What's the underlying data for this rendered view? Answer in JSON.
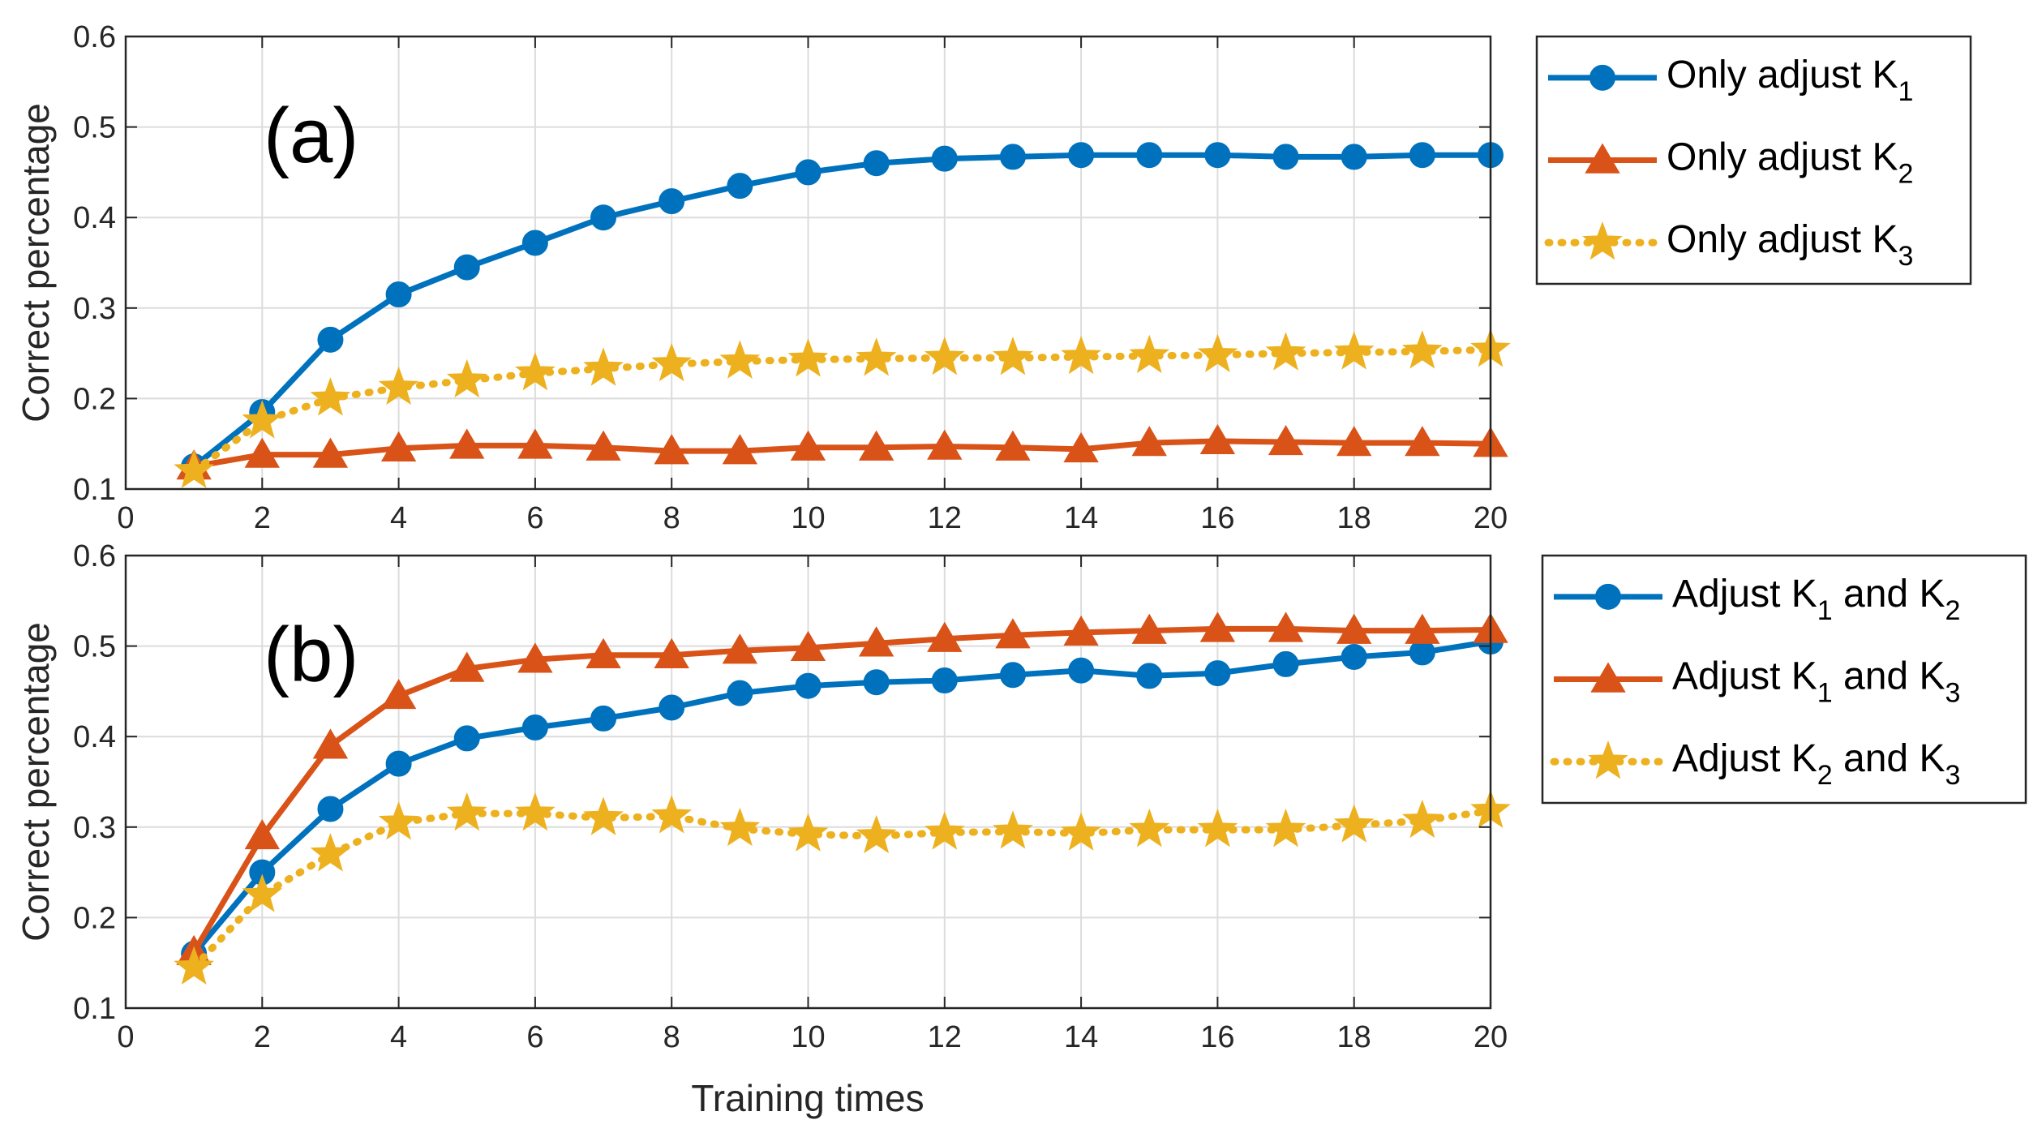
{
  "chart_data": [
    {
      "type": "line",
      "panel_label": "(a)",
      "xlabel": "",
      "ylabel": "Correct percentage",
      "xlim": [
        0,
        20
      ],
      "ylim": [
        0.1,
        0.6
      ],
      "xticks": [
        "0",
        "2",
        "4",
        "6",
        "8",
        "10",
        "12",
        "14",
        "16",
        "18",
        "20"
      ],
      "yticks": [
        "0.1",
        "0.2",
        "0.3",
        "0.4",
        "0.5",
        "0.6"
      ],
      "grid": true,
      "legend_position": "outside-right",
      "x": [
        1,
        2,
        3,
        4,
        5,
        6,
        7,
        8,
        9,
        10,
        11,
        12,
        13,
        14,
        15,
        16,
        17,
        18,
        19,
        20
      ],
      "series": [
        {
          "name": "Only adjust K1",
          "legend": {
            "prefix": "Only adjust K",
            "sub": "1",
            "suffix": ""
          },
          "color": "#0072BD",
          "marker": "circle",
          "dash": "solid",
          "values": [
            0.125,
            0.185,
            0.265,
            0.315,
            0.345,
            0.372,
            0.4,
            0.418,
            0.435,
            0.45,
            0.46,
            0.465,
            0.467,
            0.469,
            0.469,
            0.469,
            0.467,
            0.467,
            0.469,
            0.469
          ]
        },
        {
          "name": "Only adjust K2",
          "legend": {
            "prefix": "Only adjust K",
            "sub": "2",
            "suffix": ""
          },
          "color": "#D95319",
          "marker": "triangle",
          "dash": "solid",
          "values": [
            0.125,
            0.138,
            0.138,
            0.145,
            0.148,
            0.148,
            0.146,
            0.142,
            0.142,
            0.146,
            0.146,
            0.147,
            0.146,
            0.144,
            0.151,
            0.153,
            0.152,
            0.151,
            0.151,
            0.15
          ]
        },
        {
          "name": "Only adjust K3",
          "legend": {
            "prefix": "Only adjust K",
            "sub": "3",
            "suffix": ""
          },
          "color": "#EDB120",
          "marker": "star",
          "dash": "dotted",
          "values": [
            0.12,
            0.175,
            0.2,
            0.212,
            0.22,
            0.228,
            0.233,
            0.238,
            0.241,
            0.243,
            0.244,
            0.245,
            0.245,
            0.246,
            0.247,
            0.248,
            0.25,
            0.251,
            0.252,
            0.254
          ]
        }
      ]
    },
    {
      "type": "line",
      "panel_label": "(b)",
      "xlabel": "Training times",
      "ylabel": "Correct percentage",
      "xlim": [
        0,
        20
      ],
      "ylim": [
        0.1,
        0.6
      ],
      "xticks": [
        "0",
        "2",
        "4",
        "6",
        "8",
        "10",
        "12",
        "14",
        "16",
        "18",
        "20"
      ],
      "yticks": [
        "0.1",
        "0.2",
        "0.3",
        "0.4",
        "0.5",
        "0.6"
      ],
      "grid": true,
      "legend_position": "outside-right",
      "x": [
        1,
        2,
        3,
        4,
        5,
        6,
        7,
        8,
        9,
        10,
        11,
        12,
        13,
        14,
        15,
        16,
        17,
        18,
        19,
        20
      ],
      "series": [
        {
          "name": "Adjust K1 and K2",
          "legend": {
            "prefix": "Adjust K",
            "sub": "1",
            "mid": " and K",
            "sub2": "2"
          },
          "color": "#0072BD",
          "marker": "circle",
          "dash": "solid",
          "values": [
            0.16,
            0.25,
            0.32,
            0.37,
            0.398,
            0.41,
            0.42,
            0.432,
            0.448,
            0.456,
            0.46,
            0.462,
            0.468,
            0.473,
            0.467,
            0.47,
            0.48,
            0.488,
            0.493,
            0.505
          ]
        },
        {
          "name": "Adjust K1 and K3",
          "legend": {
            "prefix": "Adjust K",
            "sub": "1",
            "mid": " and K",
            "sub2": "3"
          },
          "color": "#D95319",
          "marker": "triangle",
          "dash": "solid",
          "values": [
            0.162,
            0.29,
            0.39,
            0.445,
            0.475,
            0.485,
            0.49,
            0.49,
            0.495,
            0.498,
            0.503,
            0.508,
            0.512,
            0.515,
            0.517,
            0.519,
            0.519,
            0.517,
            0.517,
            0.518
          ]
        },
        {
          "name": "Adjust K2 and K3",
          "legend": {
            "prefix": "Adjust K",
            "sub": "2",
            "mid": " and K",
            "sub2": "3"
          },
          "color": "#EDB120",
          "marker": "star",
          "dash": "dotted",
          "values": [
            0.145,
            0.225,
            0.27,
            0.305,
            0.315,
            0.315,
            0.31,
            0.312,
            0.298,
            0.292,
            0.29,
            0.294,
            0.295,
            0.293,
            0.297,
            0.297,
            0.297,
            0.302,
            0.307,
            0.318
          ]
        }
      ]
    }
  ]
}
